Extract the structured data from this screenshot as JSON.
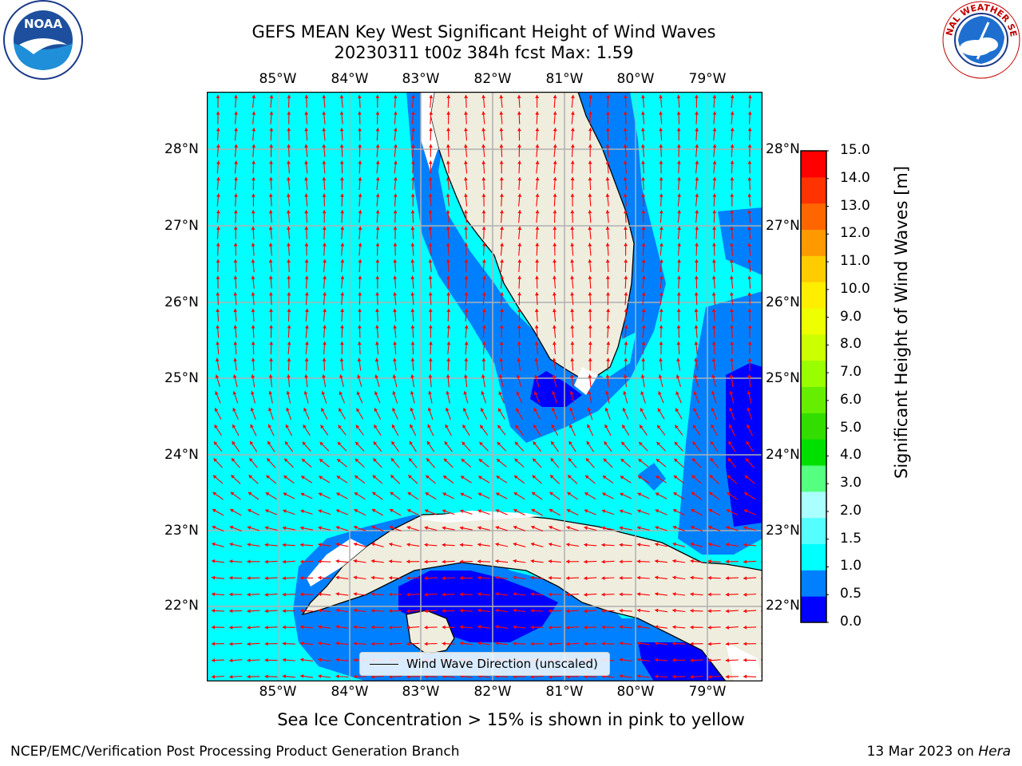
{
  "title": {
    "line1": "GEFS MEAN Key West Significant Height of Wind Waves",
    "line2": "20230311 t00z 384h fcst   Max: 1.59"
  },
  "map": {
    "lon_labels": [
      "85°W",
      "84°W",
      "83°W",
      "82°W",
      "81°W",
      "80°W",
      "79°W"
    ],
    "lat_labels": [
      "28°N",
      "27°N",
      "26°N",
      "25°N",
      "24°N",
      "23°N",
      "22°N"
    ],
    "colors": {
      "ocean": "#00ffff",
      "shallow": "#0080ff",
      "deep": "#0000ff",
      "land": "#eeedde",
      "arrow": "#ff0000",
      "grid": "#b0b0b0"
    },
    "legend_label": "Wind Wave Direction (unscaled)",
    "ice_note": "Sea Ice Concentration > 15% is shown in pink to yellow"
  },
  "colorbar": {
    "label": "Significant Height of Wind Waves [m]",
    "ticks": [
      "0.0",
      "0.5",
      "1.0",
      "1.5",
      "2.0",
      "3.0",
      "4.0",
      "5.0",
      "6.0",
      "7.0",
      "8.0",
      "9.0",
      "10.0",
      "11.0",
      "12.0",
      "13.0",
      "14.0",
      "15.0"
    ],
    "colors": [
      "#0000ff",
      "#0080ff",
      "#00ffff",
      "#55ffff",
      "#aaffff",
      "#55ff80",
      "#00e000",
      "#33dd00",
      "#66ee00",
      "#99ff00",
      "#ccff00",
      "#eeff00",
      "#ffee00",
      "#ffcc00",
      "#ff9900",
      "#ff6600",
      "#ff3300",
      "#ff0000"
    ]
  },
  "logos": {
    "noaa": "NOAA",
    "noaa_ring": "NATIONAL OCEANIC AND ATMOSPHERIC ADMINISTRATION · U.S. DEPARTMENT OF COMMERCE",
    "nws_ring": "NATIONAL WEATHER SERVICE"
  },
  "footer": {
    "left": "NCEP/EMC/Verification Post Processing Product Generation Branch",
    "right_date": "13 Mar 2023 on ",
    "right_host": "Hera"
  }
}
